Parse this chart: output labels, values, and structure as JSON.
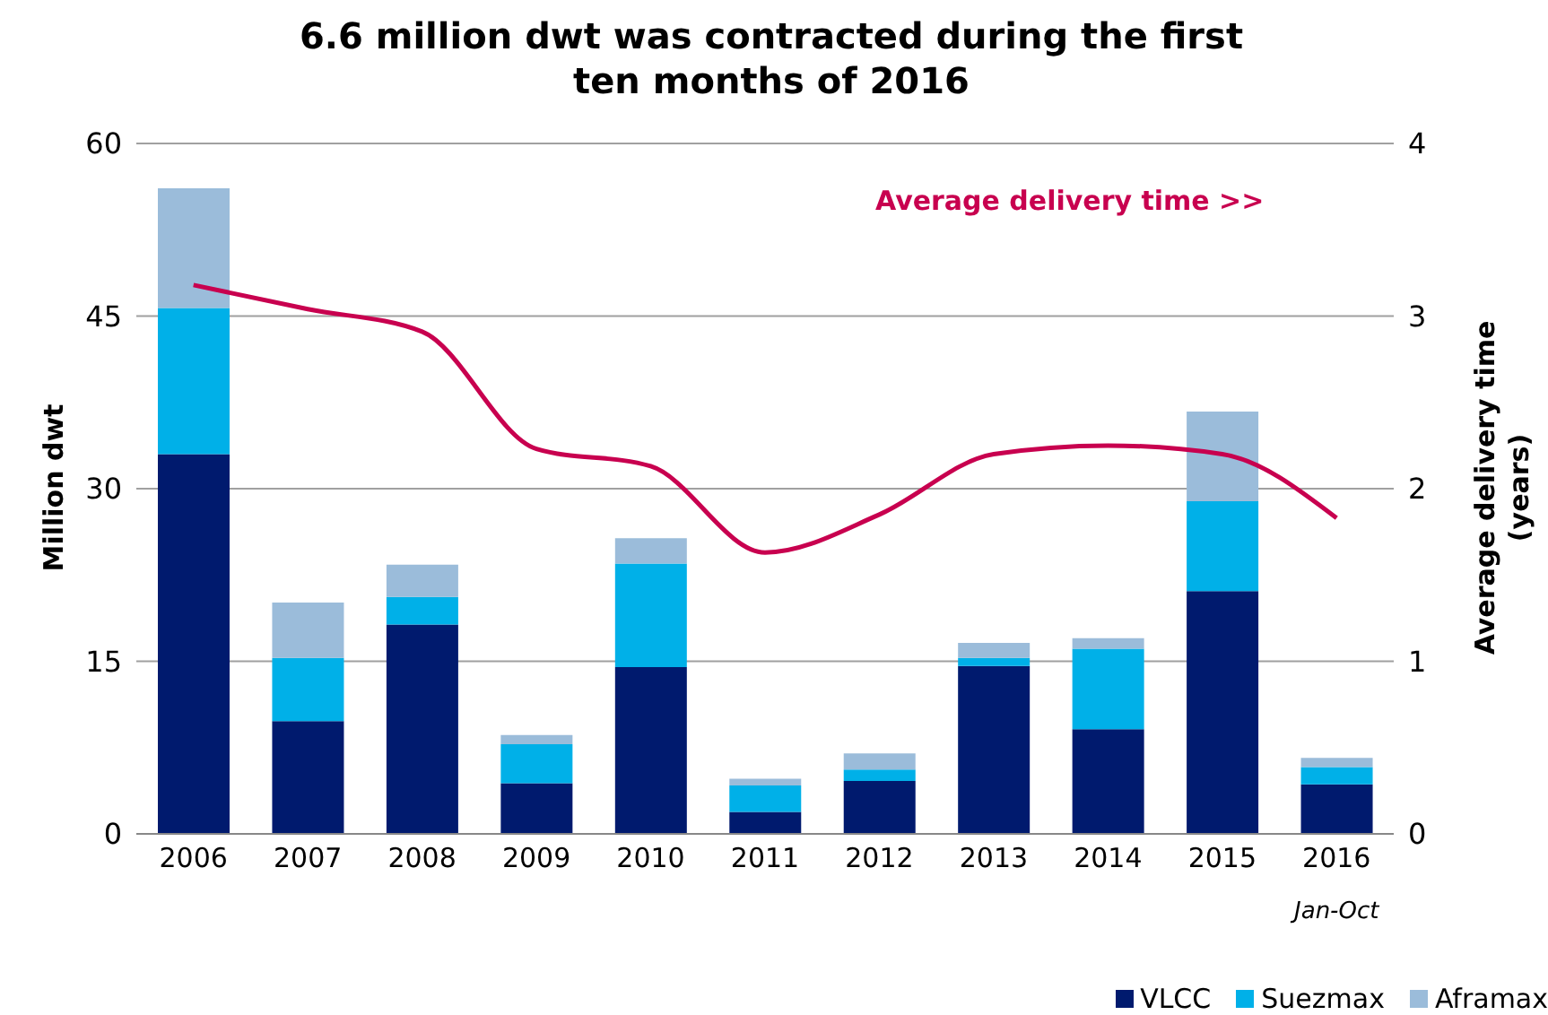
{
  "chart_data": {
    "type": "bar",
    "title": "6.6 million dwt was contracted during the first ten months of 2016",
    "categories": [
      "2006",
      "2007",
      "2008",
      "2009",
      "2010",
      "2011",
      "2012",
      "2013",
      "2014",
      "2015",
      "2016"
    ],
    "stacked": true,
    "series": [
      {
        "name": "VLCC",
        "color": "#001a6e",
        "values": [
          33.0,
          9.8,
          18.2,
          4.4,
          14.5,
          1.9,
          4.6,
          14.6,
          9.1,
          21.1,
          4.3
        ]
      },
      {
        "name": "Suezmax",
        "color": "#00b0e8",
        "values": [
          12.7,
          5.5,
          2.4,
          3.4,
          9.0,
          2.3,
          1.0,
          0.7,
          7.0,
          7.8,
          1.5
        ]
      },
      {
        "name": "Aframax",
        "color": "#9bbcda",
        "values": [
          10.4,
          4.8,
          2.8,
          0.8,
          2.2,
          0.6,
          1.4,
          1.3,
          0.9,
          7.8,
          0.8
        ]
      },
      {
        "type": "line",
        "axis": "y2",
        "color": "#c8004f",
        "values": [
          3.18,
          3.04,
          2.91,
          2.23,
          2.13,
          1.63,
          1.85,
          2.2,
          2.25,
          2.2,
          1.83
        ]
      }
    ],
    "ylabel": "Million dwt",
    "y2label": "Average delivery time (years)",
    "ylim": [
      0,
      60
    ],
    "yticks": [
      0,
      15,
      30,
      45,
      60
    ],
    "y2lim": [
      0,
      4
    ],
    "y2ticks": [
      0,
      1,
      2,
      3,
      4
    ],
    "grid": "y",
    "legend": "bottom right",
    "annotations": [
      "Average delivery time >>",
      "Jan-Oct"
    ]
  }
}
